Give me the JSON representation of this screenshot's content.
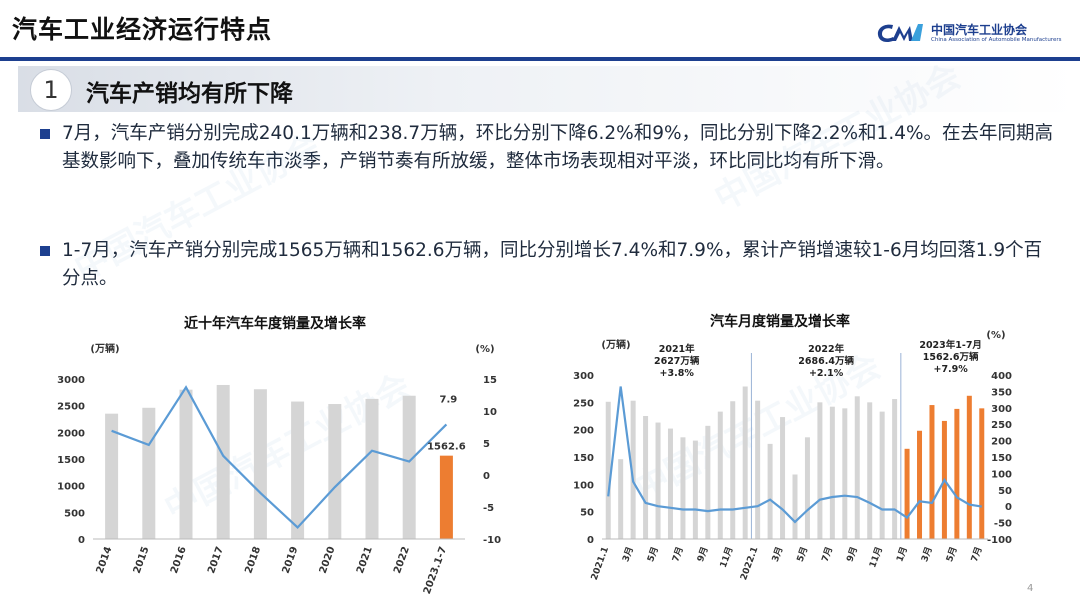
{
  "header": {
    "title": "汽车工业经济运行特点",
    "logo_cn": "中国汽车工业协会",
    "logo_en": "China Association of Automobile Manufacturers"
  },
  "section": {
    "number": "1",
    "title": "汽车产销均有所下降"
  },
  "bullets": [
    "7月，汽车产销分别完成240.1万辆和238.7万辆，环比分别下降6.2%和9%，同比分别下降2.2%和1.4%。在去年同期高基数影响下，叠加传统车市淡季，产销节奏有所放缓，整体市场表现相对平淡，环比同比均有所下滑。",
    "1-7月，汽车产销分别完成1565万辆和1562.6万辆，同比分别增长7.4%和7.9%，累计产销增速较1-6月均回落1.9个百分点。"
  ],
  "page_number": "4",
  "colors": {
    "accent": "#1d3f8f",
    "bar_gray": "#d5d5d5",
    "bar_orange": "#ed7d31",
    "line_blue": "#5b9bd5"
  },
  "chart_data": [
    {
      "type": "bar",
      "title": "近十年汽车年度销量及增长率",
      "left_unit": "(万辆)",
      "right_unit": "(%)",
      "categories": [
        "2014",
        "2015",
        "2016",
        "2017",
        "2018",
        "2019",
        "2020",
        "2021",
        "2022",
        "2023.1-7"
      ],
      "series": [
        {
          "values": [
            2350,
            2460,
            2800,
            2888,
            2808,
            2577,
            2531,
            2627,
            2686,
            1562.6
          ]
        },
        {
          "values": [
            6.9,
            4.7,
            13.7,
            3.0,
            -2.8,
            -8.2,
            -1.9,
            3.8,
            2.1,
            7.9
          ]
        }
      ],
      "ylim_left": [
        0,
        3000
      ],
      "left_ticks": [
        "0",
        "500",
        "1000",
        "1500",
        "2000",
        "2500",
        "3000"
      ],
      "ylim_right": [
        -10,
        15
      ],
      "right_ticks": [
        "-10",
        "-5",
        "0",
        "5",
        "10",
        "15"
      ],
      "data_labels": {
        "last_bar": "1562.6",
        "last_rate": "7.9"
      }
    },
    {
      "type": "bar",
      "title": "汽车月度销量及增长率",
      "left_unit": "(万辆)",
      "right_unit": "(%)",
      "categories": [
        "2021.1",
        "2021.2",
        "2021.3",
        "2021.4",
        "2021.5",
        "2021.6",
        "2021.7",
        "2021.8",
        "2021.9",
        "2021.10",
        "2021.11",
        "2021.12",
        "2022.1",
        "2022.2",
        "2022.3",
        "2022.4",
        "2022.5",
        "2022.6",
        "2022.7",
        "2022.8",
        "2022.9",
        "2022.10",
        "2022.11",
        "2022.12",
        "2023.1",
        "2023.2",
        "2023.3",
        "2023.4",
        "2023.5",
        "2023.6",
        "2023.7"
      ],
      "x_tick_labels": [
        "2021.1",
        "3月",
        "5月",
        "7月",
        "9月",
        "11月",
        "2022.1",
        "3月",
        "5月",
        "7月",
        "9月",
        "11月",
        "1月",
        "3月",
        "5月",
        "7月"
      ],
      "series": [
        {
          "values": [
            251,
            146,
            253,
            225,
            213,
            202,
            186,
            180,
            207,
            233,
            252,
            279,
            253,
            174,
            223,
            118,
            186,
            250,
            242,
            239,
            261,
            250,
            233,
            256,
            165,
            198,
            245,
            216,
            238,
            262,
            239
          ]
        },
        {
          "values": [
            30,
            365,
            75,
            10,
            0,
            -5,
            -10,
            -10,
            -15,
            -10,
            -10,
            -5,
            0,
            20,
            -10,
            -48,
            -12,
            20,
            28,
            32,
            28,
            10,
            -10,
            -10,
            -35,
            15,
            10,
            80,
            27,
            5,
            -1
          ]
        }
      ],
      "ylim_left": [
        0,
        300
      ],
      "left_ticks": [
        "0",
        "50",
        "100",
        "150",
        "200",
        "250",
        "300"
      ],
      "ylim_right": [
        -100,
        400
      ],
      "right_ticks": [
        "-100",
        "-50",
        "0",
        "50",
        "100",
        "150",
        "200",
        "250",
        "300",
        "350",
        "400"
      ],
      "annotations": [
        {
          "year": "2021年",
          "total": "2627万辆",
          "growth": "+3.8%"
        },
        {
          "year": "2022年",
          "total": "2686.4万辆",
          "growth": "+2.1%"
        },
        {
          "year": "2023年1-7月",
          "total": "1562.6万辆",
          "growth": "+7.9%"
        }
      ]
    }
  ]
}
